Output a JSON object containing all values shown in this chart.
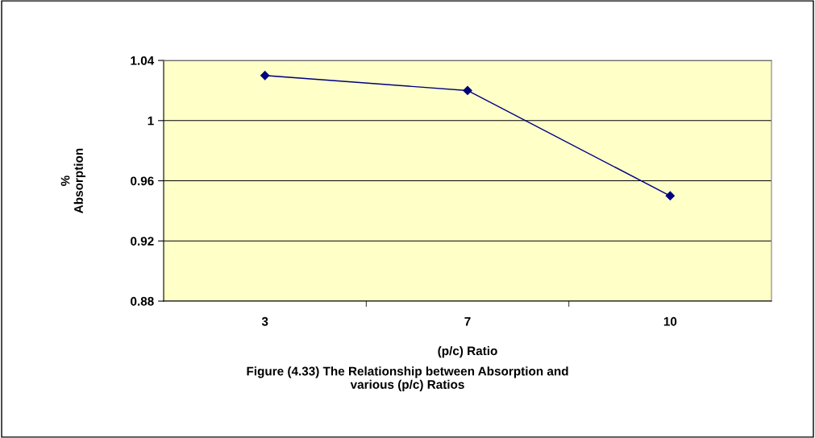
{
  "chart_data": {
    "type": "line",
    "xlabel": "(p/c) Ratio",
    "ylabel": "%\nAbsorption",
    "categories": [
      "3",
      "7",
      "10"
    ],
    "series": [
      {
        "color": "#000080",
        "values": [
          1.03,
          1.02,
          0.95
        ]
      }
    ],
    "ylim": [
      0.88,
      1.04
    ],
    "yticks": [
      {
        "value": 0.88,
        "label": "0.88"
      },
      {
        "value": 0.92,
        "label": "0.92"
      },
      {
        "value": 0.96,
        "label": "0.96"
      },
      {
        "value": 1,
        "label": "1"
      },
      {
        "value": 1.04,
        "label": "1.04"
      }
    ],
    "grid": "y",
    "marker": "diamond",
    "line_style": "solid",
    "annotations": [
      "Figure (4.33) The Relationship between Absorption and\nvarious (p/c) Ratios"
    ]
  }
}
